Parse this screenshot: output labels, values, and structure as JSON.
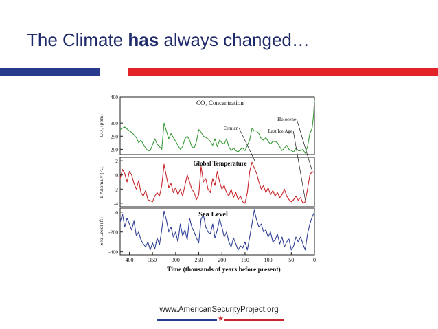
{
  "slide": {
    "title_pre": "The Climate ",
    "title_bold": "has",
    "title_post": " always changed…",
    "footer_url": "www.AmericanSecurityProject.org",
    "brand_colors": {
      "blue": "#283a8e",
      "red": "#e3222a"
    }
  },
  "chart_data": {
    "type": "line",
    "xlabel": "Time (thousands of years before present)",
    "x_ticks": [
      400,
      350,
      300,
      250,
      200,
      150,
      100,
      50,
      0
    ],
    "xlim": [
      420,
      0
    ],
    "panels": [
      {
        "title": "CO₂ Concentration",
        "ylabel": "CO₂ (ppm)",
        "color": "#3a9a3a",
        "ylim": [
          180,
          400
        ],
        "y_ticks": [
          400,
          300,
          250,
          200
        ],
        "annotations": [],
        "x": [
          420,
          410,
          400,
          395,
          390,
          385,
          380,
          375,
          370,
          365,
          360,
          355,
          345,
          340,
          335,
          330,
          325,
          320,
          315,
          310,
          305,
          300,
          295,
          290,
          285,
          280,
          275,
          270,
          265,
          260,
          255,
          250,
          245,
          240,
          235,
          230,
          225,
          220,
          215,
          210,
          205,
          200,
          195,
          190,
          185,
          180,
          175,
          170,
          165,
          160,
          155,
          150,
          140,
          135,
          130,
          125,
          120,
          115,
          110,
          105,
          100,
          95,
          90,
          85,
          80,
          75,
          70,
          65,
          60,
          55,
          50,
          45,
          40,
          35,
          30,
          25,
          20,
          15,
          10,
          5,
          2,
          0
        ],
        "y": [
          275,
          285,
          270,
          265,
          255,
          245,
          225,
          235,
          220,
          205,
          195,
          195,
          240,
          220,
          210,
          200,
          300,
          270,
          240,
          260,
          245,
          230,
          215,
          200,
          210,
          240,
          250,
          235,
          210,
          205,
          230,
          275,
          265,
          250,
          245,
          240,
          230,
          215,
          240,
          210,
          235,
          225,
          220,
          240,
          210,
          195,
          205,
          195,
          190,
          200,
          205,
          195,
          235,
          280,
          270,
          270,
          260,
          240,
          235,
          245,
          230,
          220,
          230,
          230,
          225,
          210,
          195,
          205,
          215,
          200,
          195,
          190,
          205,
          195,
          195,
          200,
          185,
          210,
          260,
          280,
          330,
          390
        ]
      },
      {
        "title": "Global Temperature",
        "ylabel": "T Anomaly (°C)",
        "color": "#c8252a",
        "ylim": [
          -4.5,
          2.5
        ],
        "y_ticks": [
          2,
          0,
          -2,
          -4
        ],
        "annotations": [
          "Eemian",
          "Holocene",
          "Last Ice Age"
        ],
        "x": [
          420,
          415,
          410,
          405,
          400,
          395,
          390,
          385,
          380,
          375,
          370,
          365,
          360,
          350,
          345,
          340,
          335,
          330,
          325,
          320,
          315,
          310,
          305,
          300,
          295,
          290,
          285,
          280,
          275,
          270,
          265,
          260,
          255,
          250,
          245,
          240,
          235,
          230,
          225,
          220,
          215,
          210,
          205,
          200,
          195,
          190,
          185,
          180,
          175,
          170,
          165,
          160,
          155,
          150,
          145,
          140,
          135,
          130,
          125,
          120,
          115,
          110,
          105,
          100,
          95,
          90,
          85,
          80,
          75,
          70,
          65,
          60,
          55,
          50,
          45,
          40,
          35,
          30,
          25,
          20,
          15,
          10,
          5,
          0
        ],
        "y": [
          -0.5,
          0.8,
          0.2,
          -1.0,
          0.5,
          0.0,
          -1.2,
          -2.0,
          -0.8,
          -2.5,
          -3.0,
          -2.2,
          -3.5,
          -3.8,
          -3.0,
          -2.5,
          -3.0,
          -1.5,
          1.5,
          -0.2,
          -1.8,
          -1.2,
          -2.5,
          -1.8,
          -2.8,
          -2.0,
          -3.0,
          -1.5,
          0.0,
          -1.0,
          -2.0,
          -2.5,
          -3.5,
          -2.8,
          1.2,
          -1.0,
          -0.5,
          -2.0,
          -2.5,
          -0.5,
          -1.5,
          0.5,
          -1.0,
          -2.0,
          -1.5,
          -2.5,
          -3.0,
          -2.0,
          -3.2,
          -2.5,
          -3.5,
          -3.0,
          -3.8,
          -4.0,
          -2.5,
          0.5,
          1.8,
          1.0,
          0.2,
          -1.0,
          -2.0,
          -1.5,
          -2.5,
          -1.8,
          -2.8,
          -2.2,
          -3.0,
          -2.5,
          -3.2,
          -2.8,
          -2.0,
          -3.0,
          -3.5,
          -3.8,
          -3.5,
          -3.0,
          -3.6,
          -3.2,
          -4.0,
          -3.8,
          -2.0,
          0.0,
          0.5,
          0.3
        ]
      },
      {
        "title": "Sea Level",
        "ylabel": "Sea Level (ft)",
        "color": "#2f3f96",
        "ylim": [
          -430,
          40
        ],
        "y_ticks": [
          0,
          -200,
          -400
        ],
        "annotations": [],
        "x": [
          420,
          415,
          410,
          405,
          400,
          395,
          390,
          385,
          380,
          375,
          370,
          365,
          360,
          355,
          350,
          345,
          340,
          335,
          330,
          325,
          320,
          315,
          310,
          305,
          300,
          295,
          290,
          285,
          280,
          275,
          270,
          265,
          260,
          255,
          250,
          245,
          240,
          235,
          230,
          225,
          220,
          215,
          210,
          205,
          200,
          195,
          190,
          185,
          180,
          175,
          170,
          165,
          160,
          155,
          150,
          145,
          140,
          135,
          130,
          125,
          120,
          115,
          110,
          105,
          100,
          95,
          90,
          85,
          80,
          75,
          70,
          65,
          60,
          55,
          50,
          45,
          40,
          35,
          30,
          25,
          20,
          15,
          10,
          5,
          0
        ],
        "y": [
          -100,
          -20,
          -150,
          -60,
          -120,
          -180,
          -90,
          -240,
          -200,
          -280,
          -320,
          -350,
          -300,
          -380,
          -310,
          -370,
          -260,
          -330,
          -180,
          10,
          -80,
          -200,
          -150,
          -250,
          -200,
          -300,
          -120,
          -240,
          -180,
          -280,
          -60,
          -150,
          -200,
          -260,
          -310,
          -70,
          -30,
          -150,
          -200,
          -220,
          -120,
          -260,
          -180,
          -70,
          -150,
          -250,
          -200,
          -300,
          -350,
          -260,
          -320,
          -380,
          -340,
          -360,
          -300,
          -380,
          -250,
          -120,
          20,
          -80,
          -150,
          -120,
          -200,
          -180,
          -250,
          -200,
          -300,
          -280,
          -220,
          -320,
          -250,
          -350,
          -300,
          -270,
          -380,
          -340,
          -250,
          -300,
          -250,
          -320,
          -380,
          -220,
          -120,
          -50,
          0
        ]
      }
    ]
  }
}
